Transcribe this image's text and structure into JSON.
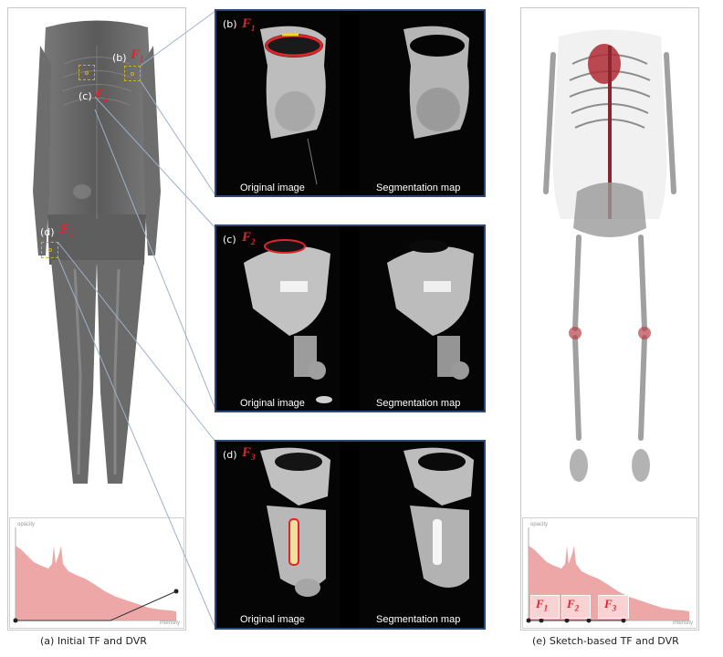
{
  "left": {
    "caption": "(a) Initial TF and DVR",
    "tags": {
      "b": "(b)",
      "c": "(c)",
      "d": "(d)"
    },
    "f_labels": {
      "b": "F",
      "c": "F",
      "d": "F"
    },
    "f_subs": {
      "b": "1",
      "c": "2",
      "d": "3"
    },
    "tf": {
      "axis_y": "opacity",
      "axis_x": "intensity"
    }
  },
  "middle": {
    "rows": [
      {
        "tag": "(b)",
        "f": "F",
        "f_sub": "1",
        "left_label": "Original image",
        "right_label": "Segmentation map"
      },
      {
        "tag": "(c)",
        "f": "F",
        "f_sub": "2",
        "left_label": "Original image",
        "right_label": "Segmentation map"
      },
      {
        "tag": "(d)",
        "f": "F",
        "f_sub": "3",
        "left_label": "Original image",
        "right_label": "Segmentation map"
      }
    ]
  },
  "right": {
    "caption": "(e) Sketch-based TF and DVR",
    "tf": {
      "axis_y": "opacity",
      "axis_x": "intensity",
      "boxes": [
        {
          "f": "F",
          "sub": "1"
        },
        {
          "f": "F",
          "sub": "2"
        },
        {
          "f": "F",
          "sub": "3"
        }
      ]
    }
  },
  "colors": {
    "frame": "#2b4a7a",
    "accent": "#e0242b",
    "histogram": "#e88a8a",
    "roi": "#c9b21a"
  }
}
